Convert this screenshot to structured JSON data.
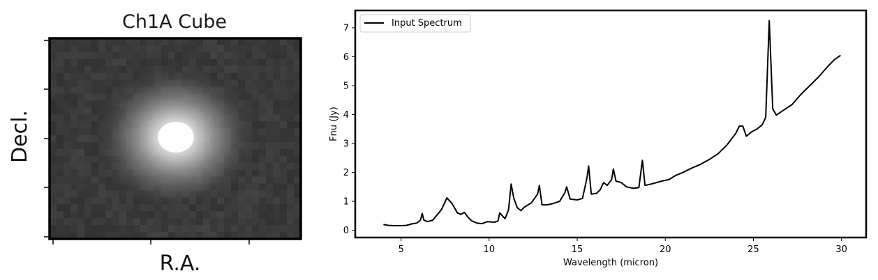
{
  "chart_data": [
    {
      "type": "heatmap",
      "title": "Ch1A Cube",
      "xlabel": "R.A.",
      "ylabel": "Decl.",
      "xticklabels": false,
      "yticklabels": false,
      "colormap": "gray",
      "source_center": [
        0.5,
        0.5
      ],
      "background_level": 0.22,
      "peak_level": 1.0
    },
    {
      "type": "line",
      "title": "",
      "xlabel": "Wavelength (micron)",
      "ylabel": "Fnu (Jy)",
      "xlim": [
        2.4,
        31.4
      ],
      "ylim": [
        -0.25,
        7.6
      ],
      "xticks": [
        5,
        10,
        15,
        20,
        25,
        30
      ],
      "yticks": [
        0,
        1,
        2,
        3,
        4,
        5,
        6,
        7
      ],
      "legend": "top-left",
      "grid": false,
      "series": [
        {
          "name": "Input Spectrum",
          "color": "#000000",
          "x": [
            4.0,
            4.3,
            4.6,
            4.8,
            5.0,
            5.3,
            5.6,
            5.9,
            6.1,
            6.2,
            6.3,
            6.5,
            6.8,
            7.0,
            7.3,
            7.6,
            7.9,
            8.2,
            8.4,
            8.6,
            8.8,
            9.0,
            9.3,
            9.6,
            9.9,
            10.3,
            10.5,
            10.6,
            10.9,
            11.1,
            11.25,
            11.4,
            11.6,
            11.8,
            12.0,
            12.4,
            12.75,
            12.85,
            13.0,
            13.3,
            13.6,
            14.0,
            14.3,
            14.4,
            14.6,
            15.0,
            15.3,
            15.55,
            15.65,
            15.8,
            16.1,
            16.3,
            16.5,
            16.7,
            16.95,
            17.05,
            17.2,
            17.5,
            17.8,
            18.2,
            18.5,
            18.7,
            18.85,
            19.2,
            19.5,
            19.8,
            20.2,
            20.6,
            21.0,
            21.5,
            22.0,
            22.5,
            23.0,
            23.5,
            24.0,
            24.2,
            24.4,
            24.6,
            24.9,
            25.2,
            25.5,
            25.7,
            25.9,
            26.1,
            26.3,
            26.7,
            27.2,
            27.7,
            28.2,
            28.7,
            29.2,
            29.6,
            29.95
          ],
          "y": [
            0.2,
            0.17,
            0.16,
            0.16,
            0.16,
            0.17,
            0.22,
            0.25,
            0.35,
            0.58,
            0.35,
            0.3,
            0.35,
            0.5,
            0.72,
            1.12,
            0.92,
            0.6,
            0.55,
            0.62,
            0.45,
            0.33,
            0.25,
            0.23,
            0.3,
            0.28,
            0.32,
            0.6,
            0.4,
            0.7,
            1.6,
            1.1,
            0.78,
            0.68,
            0.8,
            0.95,
            1.25,
            1.55,
            0.88,
            0.88,
            0.92,
            1.0,
            1.3,
            1.5,
            1.08,
            1.05,
            1.1,
            1.8,
            2.22,
            1.25,
            1.28,
            1.4,
            1.65,
            1.55,
            1.75,
            2.12,
            1.7,
            1.65,
            1.5,
            1.45,
            1.48,
            2.42,
            1.55,
            1.6,
            1.65,
            1.7,
            1.75,
            1.9,
            2.0,
            2.15,
            2.28,
            2.45,
            2.65,
            2.95,
            3.35,
            3.6,
            3.6,
            3.25,
            3.4,
            3.5,
            3.65,
            3.9,
            7.25,
            4.2,
            3.98,
            4.15,
            4.35,
            4.7,
            5.0,
            5.3,
            5.65,
            5.9,
            6.05
          ]
        }
      ]
    }
  ]
}
